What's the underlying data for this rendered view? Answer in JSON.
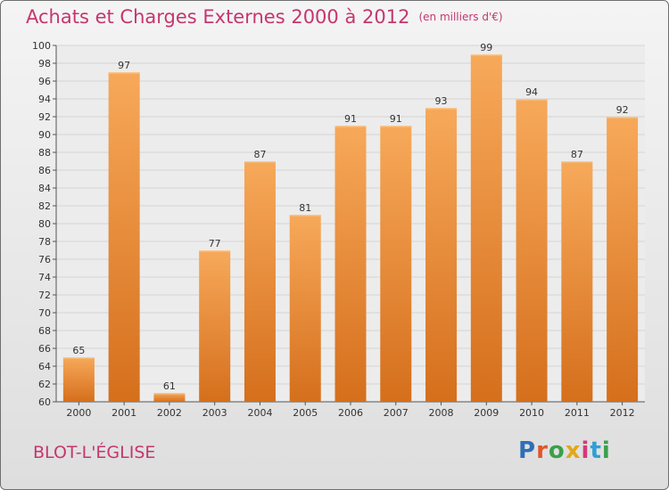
{
  "header": {
    "title": "Achats et Charges Externes 2000 à 2012",
    "unit": "(en milliers d'€)"
  },
  "footer": {
    "commune": "BLOT-L'ÉGLISE",
    "logo": "Proxiti"
  },
  "colors": {
    "accent": "#c5366e",
    "bar_light": "#f7a95a",
    "bar_dark": "#d56f1c"
  },
  "chart_data": {
    "type": "bar",
    "title": "Achats et Charges Externes 2000 à 2012",
    "subtitle": "(en milliers d'€)",
    "xlabel": "",
    "ylabel": "",
    "categories": [
      "2000",
      "2001",
      "2002",
      "2003",
      "2004",
      "2005",
      "2006",
      "2007",
      "2008",
      "2009",
      "2010",
      "2011",
      "2012"
    ],
    "values": [
      65,
      97,
      61,
      77,
      87,
      81,
      91,
      91,
      93,
      99,
      94,
      87,
      92
    ],
    "ylim": [
      60,
      100
    ],
    "yticks": [
      60,
      62,
      64,
      66,
      68,
      70,
      72,
      74,
      76,
      78,
      80,
      82,
      84,
      86,
      88,
      90,
      92,
      94,
      96,
      98,
      100
    ],
    "grid": true
  }
}
